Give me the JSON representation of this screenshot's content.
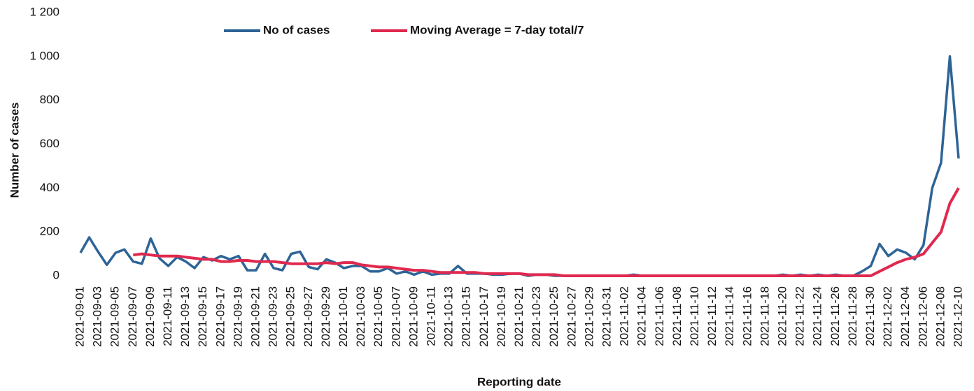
{
  "chart_data": {
    "type": "line",
    "y_label": "Number of cases",
    "x_label": "Reporting date",
    "legend": "top",
    "categories": [
      "2021-09-01",
      null,
      "2021-09-03",
      null,
      "2021-09-05",
      null,
      "2021-09-07",
      null,
      "2021-09-09",
      null,
      "2021-09-11",
      null,
      "2021-09-13",
      null,
      "2021-09-15",
      null,
      "2021-09-17",
      null,
      "2021-09-19",
      null,
      "2021-09-21",
      null,
      "2021-09-23",
      null,
      "2021-09-25",
      null,
      "2021-09-27",
      null,
      "2021-09-29",
      null,
      "2021-10-01",
      null,
      "2021-10-03",
      null,
      "2021-10-05",
      null,
      "2021-10-07",
      null,
      "2021-10-09",
      null,
      "2021-10-11",
      null,
      "2021-10-13",
      null,
      "2021-10-15",
      null,
      "2021-10-17",
      null,
      "2021-10-19",
      null,
      "2021-10-21",
      null,
      "2021-10-23",
      null,
      "2021-10-25",
      null,
      "2021-10-27",
      null,
      "2021-10-29",
      null,
      "2021-10-31",
      null,
      "2021-11-02",
      null,
      "2021-11-04",
      null,
      "2021-11-06",
      null,
      "2021-11-08",
      null,
      "2021-11-10",
      null,
      "2021-11-12",
      null,
      "2021-11-14",
      null,
      "2021-11-16",
      null,
      "2021-11-18",
      null,
      "2021-11-20",
      null,
      "2021-11-22",
      null,
      "2021-11-24",
      null,
      "2021-11-26",
      null,
      "2021-11-28",
      null,
      "2021-11-30",
      null,
      "2021-12-02",
      null,
      "2021-12-04",
      null,
      "2021-12-06",
      null,
      "2021-12-08",
      null,
      "2021-12-10"
    ],
    "series": [
      {
        "name": "No of cases",
        "color": "#2e6496",
        "values": [
          105,
          175,
          110,
          50,
          105,
          120,
          65,
          55,
          170,
          80,
          45,
          85,
          65,
          35,
          85,
          70,
          90,
          75,
          90,
          25,
          25,
          100,
          35,
          25,
          100,
          110,
          40,
          30,
          75,
          60,
          35,
          45,
          45,
          20,
          20,
          35,
          10,
          20,
          5,
          20,
          5,
          10,
          10,
          45,
          10,
          10,
          10,
          5,
          5,
          10,
          10,
          0,
          5,
          5,
          0,
          0,
          0,
          0,
          0,
          0,
          0,
          0,
          0,
          5,
          0,
          0,
          0,
          0,
          0,
          0,
          0,
          0,
          0,
          0,
          0,
          0,
          0,
          0,
          0,
          0,
          5,
          0,
          5,
          0,
          5,
          0,
          5,
          0,
          0,
          20,
          45,
          145,
          90,
          120,
          105,
          75,
          140,
          400,
          515,
          1000,
          535
        ]
      },
      {
        "name": "Moving Average = 7-day total/7",
        "color": "#e0294f",
        "values": [
          null,
          null,
          null,
          null,
          null,
          null,
          95,
          100,
          95,
          90,
          90,
          90,
          85,
          80,
          75,
          75,
          65,
          65,
          70,
          70,
          65,
          65,
          65,
          60,
          55,
          55,
          55,
          55,
          60,
          55,
          60,
          60,
          50,
          45,
          40,
          40,
          35,
          30,
          25,
          25,
          20,
          15,
          15,
          15,
          15,
          15,
          10,
          10,
          10,
          10,
          10,
          5,
          5,
          5,
          5,
          0,
          0,
          0,
          0,
          0,
          0,
          0,
          0,
          0,
          0,
          0,
          0,
          0,
          0,
          0,
          0,
          0,
          0,
          0,
          0,
          0,
          0,
          0,
          0,
          0,
          0,
          0,
          0,
          0,
          0,
          0,
          0,
          0,
          0,
          0,
          0,
          20,
          40,
          60,
          75,
          85,
          100,
          150,
          200,
          330,
          400
        ]
      }
    ],
    "ylim": [
      0,
      1200
    ],
    "yticks": [
      0,
      200,
      400,
      600,
      800,
      {
        "value": 1000,
        "label": "1 000"
      },
      {
        "value": 1200,
        "label": "1 200"
      }
    ]
  }
}
